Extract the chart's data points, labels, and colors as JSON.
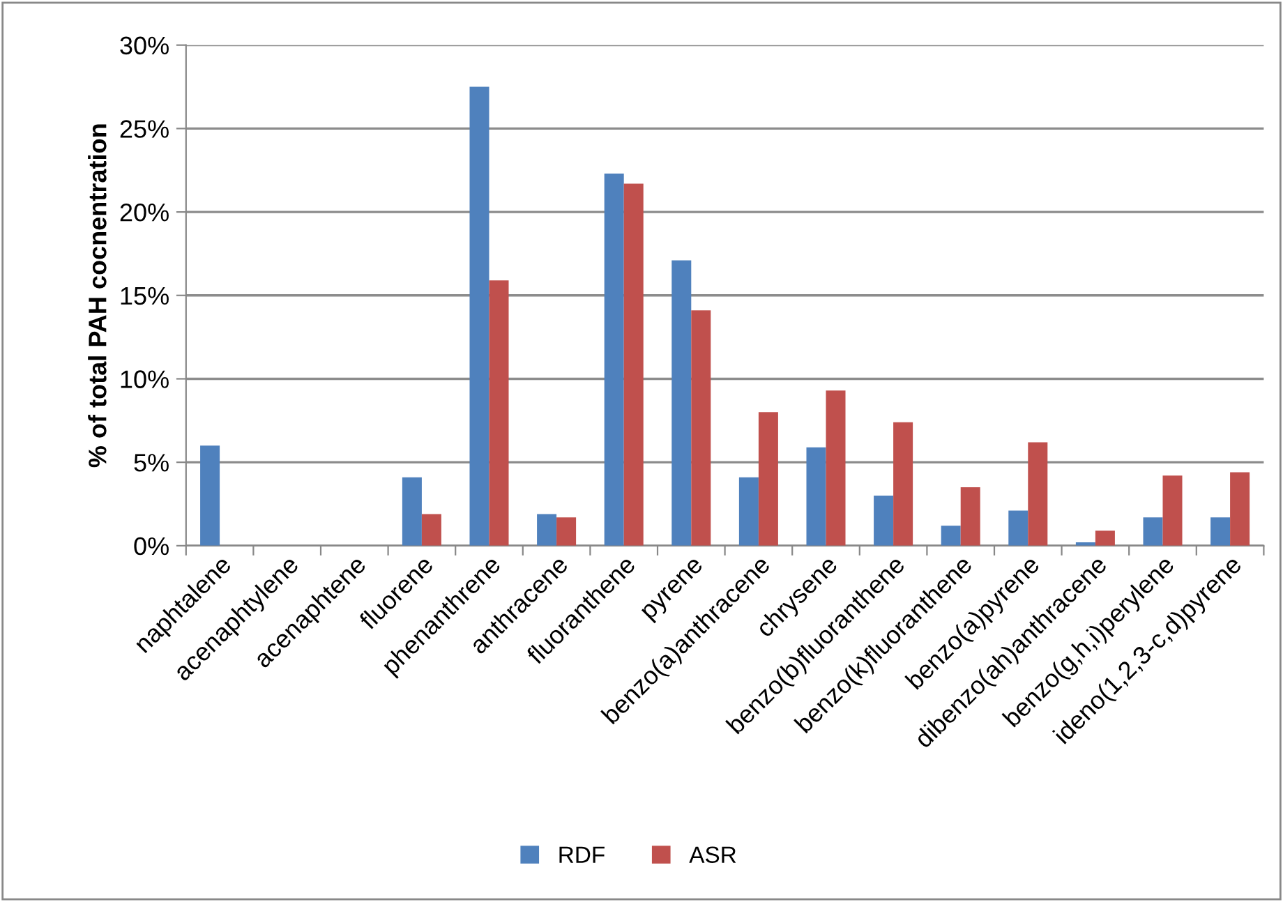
{
  "chart_data": {
    "type": "bar",
    "ylabel": "% of total PAH cocnentration",
    "categories": [
      "naphtalene",
      "acenaphtylene",
      "acenaphtene",
      "fluorene",
      "phenanthrene",
      "anthracene",
      "fluoranthene",
      "pyrene",
      "benzo(a)anthracene",
      "chrysene",
      "benzo(b)fluoranthene",
      "benzo(k)fluoranthene",
      "benzo(a)pyrene",
      "dibenzo(ah)anthracene",
      "benzo(g,h,i)perylene",
      "ideno(1,2,3-c,d)pyrene"
    ],
    "series": [
      {
        "name": "RDF",
        "color": "#4f81bd",
        "values": [
          6.0,
          0,
          0,
          4.1,
          27.5,
          1.9,
          22.3,
          17.1,
          4.1,
          5.9,
          3.0,
          1.2,
          2.1,
          0.2,
          1.7,
          1.7
        ]
      },
      {
        "name": "ASR",
        "color": "#c0504d",
        "values": [
          0,
          0,
          0,
          1.9,
          15.9,
          1.7,
          21.7,
          14.1,
          8.0,
          9.3,
          7.4,
          3.5,
          6.2,
          0.9,
          4.2,
          4.4
        ]
      }
    ],
    "ylim": [
      0,
      30
    ],
    "yticks": [
      {
        "value": 0,
        "label": "0%"
      },
      {
        "value": 5,
        "label": "5%"
      },
      {
        "value": 10,
        "label": "10%"
      },
      {
        "value": 15,
        "label": "15%"
      },
      {
        "value": 20,
        "label": "20%"
      },
      {
        "value": 25,
        "label": "25%"
      },
      {
        "value": 30,
        "label": "30%"
      }
    ],
    "grid": "y",
    "legend": "bottom"
  }
}
